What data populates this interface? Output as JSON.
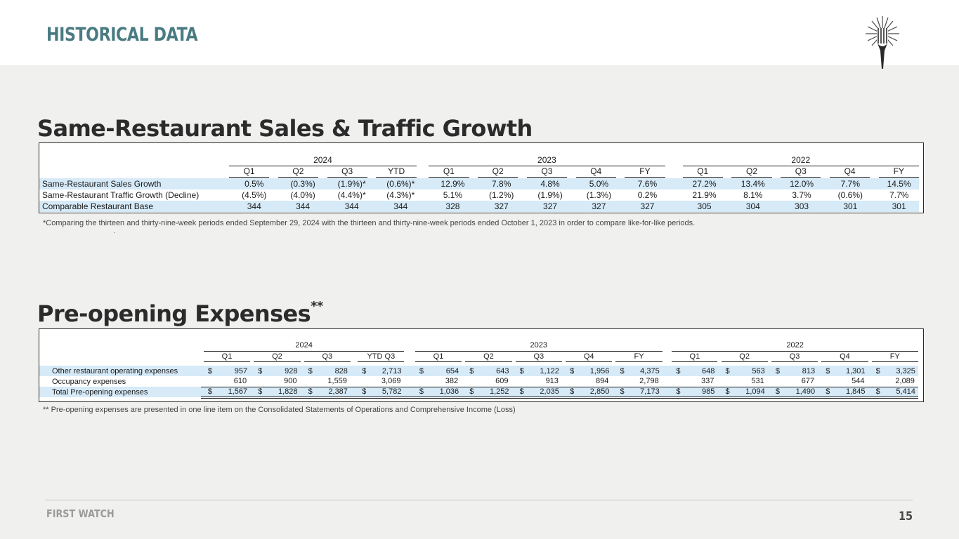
{
  "header": {
    "title": "HISTORICAL DATA"
  },
  "section1": {
    "title": "Same-Restaurant Sales & Traffic Growth",
    "years": [
      "2024",
      "2023",
      "2022"
    ],
    "quarters_2024": [
      "Q1",
      "Q2",
      "Q3",
      "YTD"
    ],
    "quarters_2023": [
      "Q1",
      "Q2",
      "Q3",
      "Q4",
      "FY"
    ],
    "quarters_2022": [
      "Q1",
      "Q2",
      "Q3",
      "Q4",
      "FY"
    ],
    "rows": [
      {
        "label": "Same-Restaurant Sales Growth",
        "values": [
          "0.5%",
          "(0.3%)",
          "(1.9%)*",
          "(0.6%)*",
          "12.9%",
          "7.8%",
          "4.8%",
          "5.0%",
          "7.6%",
          "27.2%",
          "13.4%",
          "12.0%",
          "7.7%",
          "14.5%"
        ]
      },
      {
        "label": "Same-Restaurant Traffic Growth (Decline)",
        "values": [
          "(4.5%)",
          "(4.0%)",
          "(4.4%)*",
          "(4.3%)*",
          "5.1%",
          "(1.2%)",
          "(1.9%)",
          "(1.3%)",
          "0.2%",
          "21.9%",
          "8.1%",
          "3.7%",
          "(0.6%)",
          "7.7%"
        ]
      },
      {
        "label": "Comparable Restaurant Base",
        "values": [
          "344",
          "344",
          "344",
          "344",
          "328",
          "327",
          "327",
          "327",
          "327",
          "305",
          "304",
          "303",
          "301",
          "301"
        ]
      }
    ],
    "footnote": "*Comparing the thirteen and thirty-nine-week periods ended September 29, 2024 with the thirteen and thirty-nine-week periods ended October 1, 2023 in order to compare like-for-like periods.",
    "dot": "."
  },
  "section2": {
    "title": "Pre-opening Expenses",
    "title_mark": "**",
    "years": [
      "2024",
      "2023",
      "2022"
    ],
    "quarters_2024": [
      "Q1",
      "Q2",
      "Q3",
      "YTD Q3"
    ],
    "quarters_2023": [
      "Q1",
      "Q2",
      "Q3",
      "Q4",
      "FY"
    ],
    "quarters_2022": [
      "Q1",
      "Q2",
      "Q3",
      "Q4",
      "FY"
    ],
    "currency": "$",
    "rows": [
      {
        "label": "Other restaurant operating expenses",
        "dollar": true,
        "values": [
          "957",
          "928",
          "828",
          "2,713",
          "654",
          "643",
          "1,122",
          "1,956",
          "4,375",
          "648",
          "563",
          "813",
          "1,301",
          "3,325"
        ]
      },
      {
        "label": "Occupancy expenses",
        "dollar": false,
        "values": [
          "610",
          "900",
          "1,559",
          "3,069",
          "382",
          "609",
          "913",
          "894",
          "2,798",
          "337",
          "531",
          "677",
          "544",
          "2,089"
        ]
      },
      {
        "label": "Total Pre-opening expenses",
        "dollar": true,
        "values": [
          "1,567",
          "1,828",
          "2,387",
          "5,782",
          "1,036",
          "1,252",
          "2,035",
          "2,850",
          "7,173",
          "985",
          "1,094",
          "1,490",
          "1,845",
          "5,414"
        ]
      }
    ],
    "footnote": "** Pre-opening expenses are presented in one line item on the Consolidated Statements of Operations and Comprehensive Income (Loss)"
  },
  "footer": {
    "brand": "FIRST WATCH",
    "page": "15"
  }
}
